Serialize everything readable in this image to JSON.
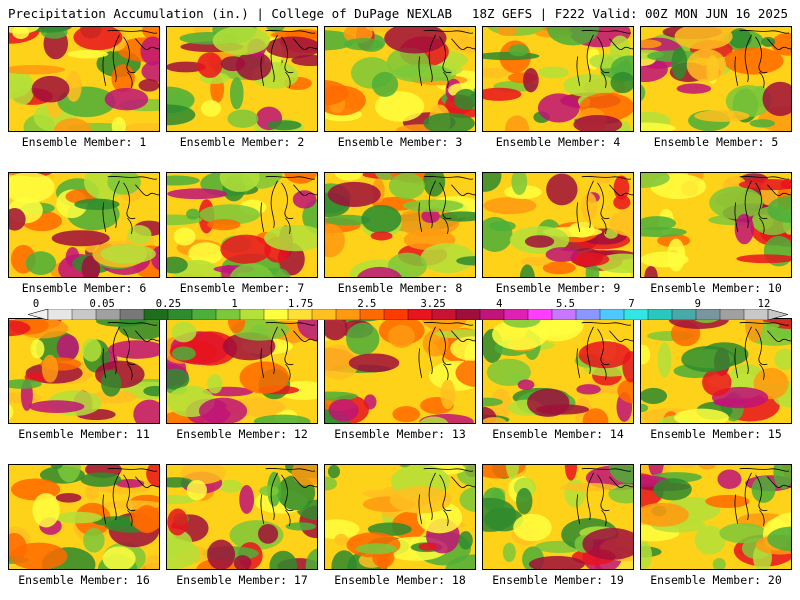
{
  "header": {
    "title_left": "Precipitation Accumulation (in.) | College of DuPage NEXLAB",
    "title_right": "18Z GEFS | F222 Valid: 00Z MON JUN 16 2025"
  },
  "panels": [
    {
      "label": "Ensemble Member: 1"
    },
    {
      "label": "Ensemble Member: 2"
    },
    {
      "label": "Ensemble Member: 3"
    },
    {
      "label": "Ensemble Member: 4"
    },
    {
      "label": "Ensemble Member: 5"
    },
    {
      "label": "Ensemble Member: 6"
    },
    {
      "label": "Ensemble Member: 7"
    },
    {
      "label": "Ensemble Member: 8"
    },
    {
      "label": "Ensemble Member: 9"
    },
    {
      "label": "Ensemble Member: 10"
    },
    {
      "label": "Ensemble Member: 11"
    },
    {
      "label": "Ensemble Member: 12"
    },
    {
      "label": "Ensemble Member: 13"
    },
    {
      "label": "Ensemble Member: 14"
    },
    {
      "label": "Ensemble Member: 15"
    },
    {
      "label": "Ensemble Member: 16"
    },
    {
      "label": "Ensemble Member: 17"
    },
    {
      "label": "Ensemble Member: 18"
    },
    {
      "label": "Ensemble Member: 19"
    },
    {
      "label": "Ensemble Member: 20"
    }
  ],
  "colorbar": {
    "tick_labels": [
      "0",
      "0.05",
      "0.25",
      "1",
      "1.75",
      "2.5",
      "3.25",
      "4",
      "5.5",
      "7",
      "9",
      "12"
    ],
    "colors": [
      "#e6e6e6",
      "#c8c8c8",
      "#a0a0a0",
      "#787878",
      "#1e6e1e",
      "#2e8b2e",
      "#4caf3a",
      "#7cc83a",
      "#b4e03a",
      "#ffff40",
      "#ffe135",
      "#ffc020",
      "#ff9a10",
      "#ff6a00",
      "#ff3c00",
      "#e8141e",
      "#c81432",
      "#a00f3c",
      "#c01478",
      "#e020b4",
      "#ff3cff",
      "#c878ff",
      "#8c96ff",
      "#50c8ff",
      "#32e6e6",
      "#28c8be",
      "#46aaaa",
      "#7896a0",
      "#a0a0a0",
      "#c8c8c8"
    ]
  }
}
